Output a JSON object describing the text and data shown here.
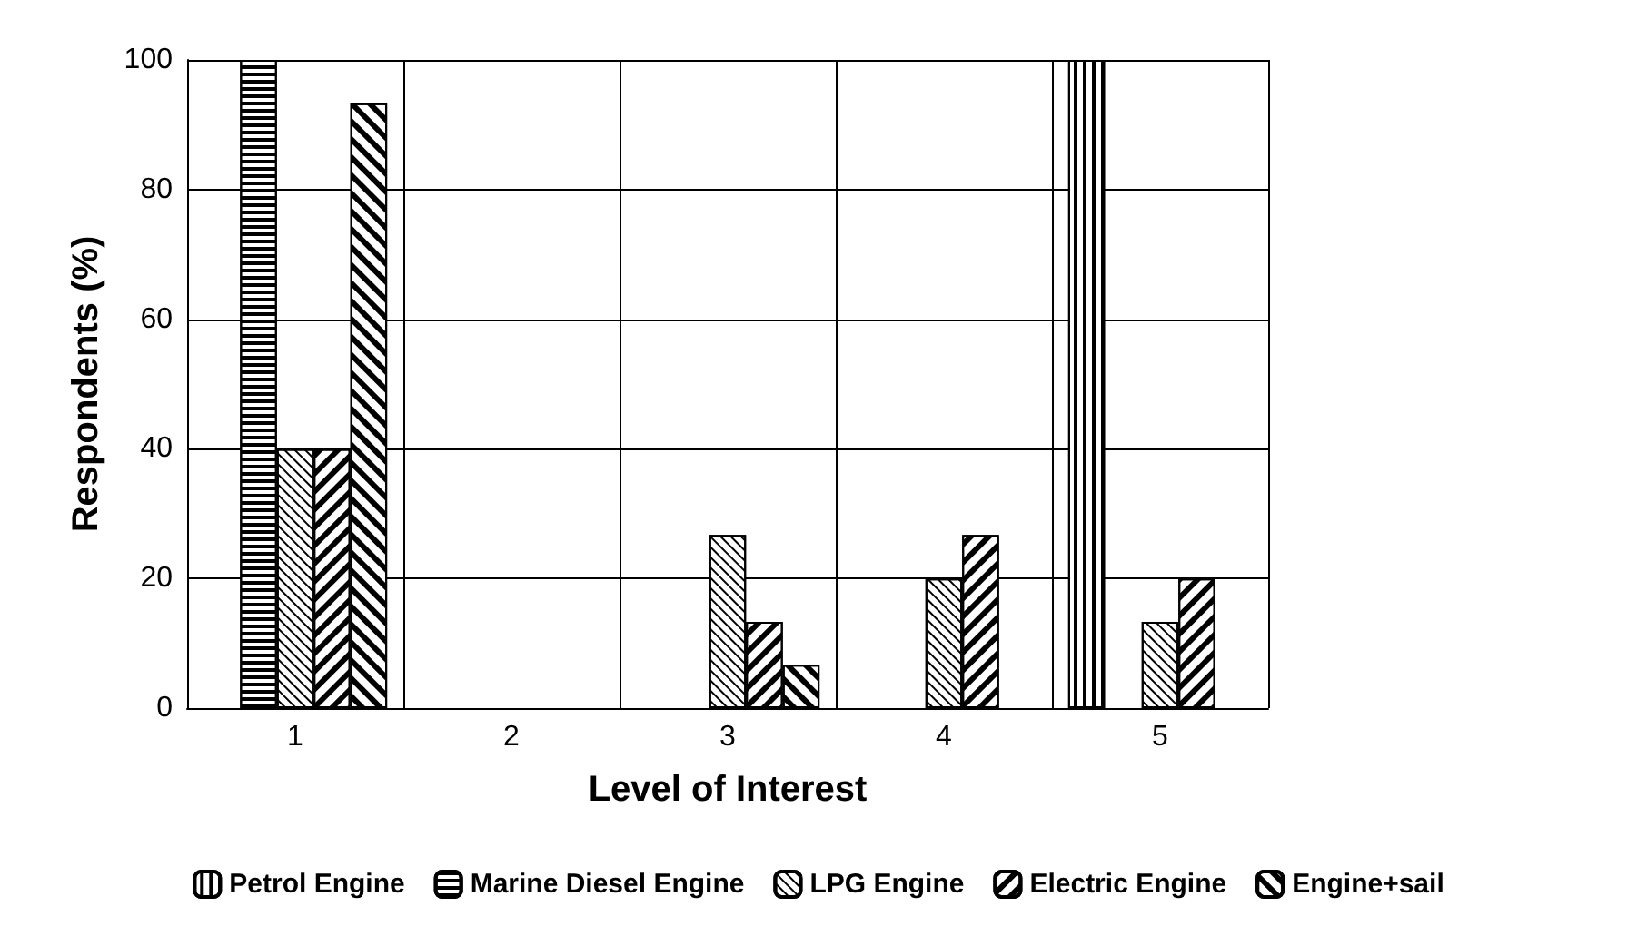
{
  "chart_data": {
    "type": "bar",
    "xlabel": "Level of Interest",
    "ylabel": "Respondents (%)",
    "categories": [
      "1",
      "2",
      "3",
      "4",
      "5"
    ],
    "series": [
      {
        "name": "Petrol Engine",
        "color": "#ffffff",
        "values": [
          0,
          0,
          0,
          0,
          100
        ]
      },
      {
        "name": "Marine Diesel Engine",
        "color": "#ffffff",
        "values": [
          100,
          0,
          0,
          0,
          0
        ]
      },
      {
        "name": "LPG Engine",
        "color": "#ffffff",
        "values": [
          40,
          0,
          26.7,
          20,
          13.3
        ]
      },
      {
        "name": "Electric Engine",
        "color": "#ffffff",
        "values": [
          40,
          0,
          13.3,
          26.7,
          20
        ]
      },
      {
        "name": "Engine+sail",
        "color": "#ffffff",
        "values": [
          93.3,
          0,
          6.7,
          0,
          0
        ]
      }
    ],
    "ylim": [
      0,
      100
    ],
    "yticks": [
      0,
      20,
      40,
      60,
      80,
      100
    ],
    "grid": true,
    "legend": "bottom"
  }
}
